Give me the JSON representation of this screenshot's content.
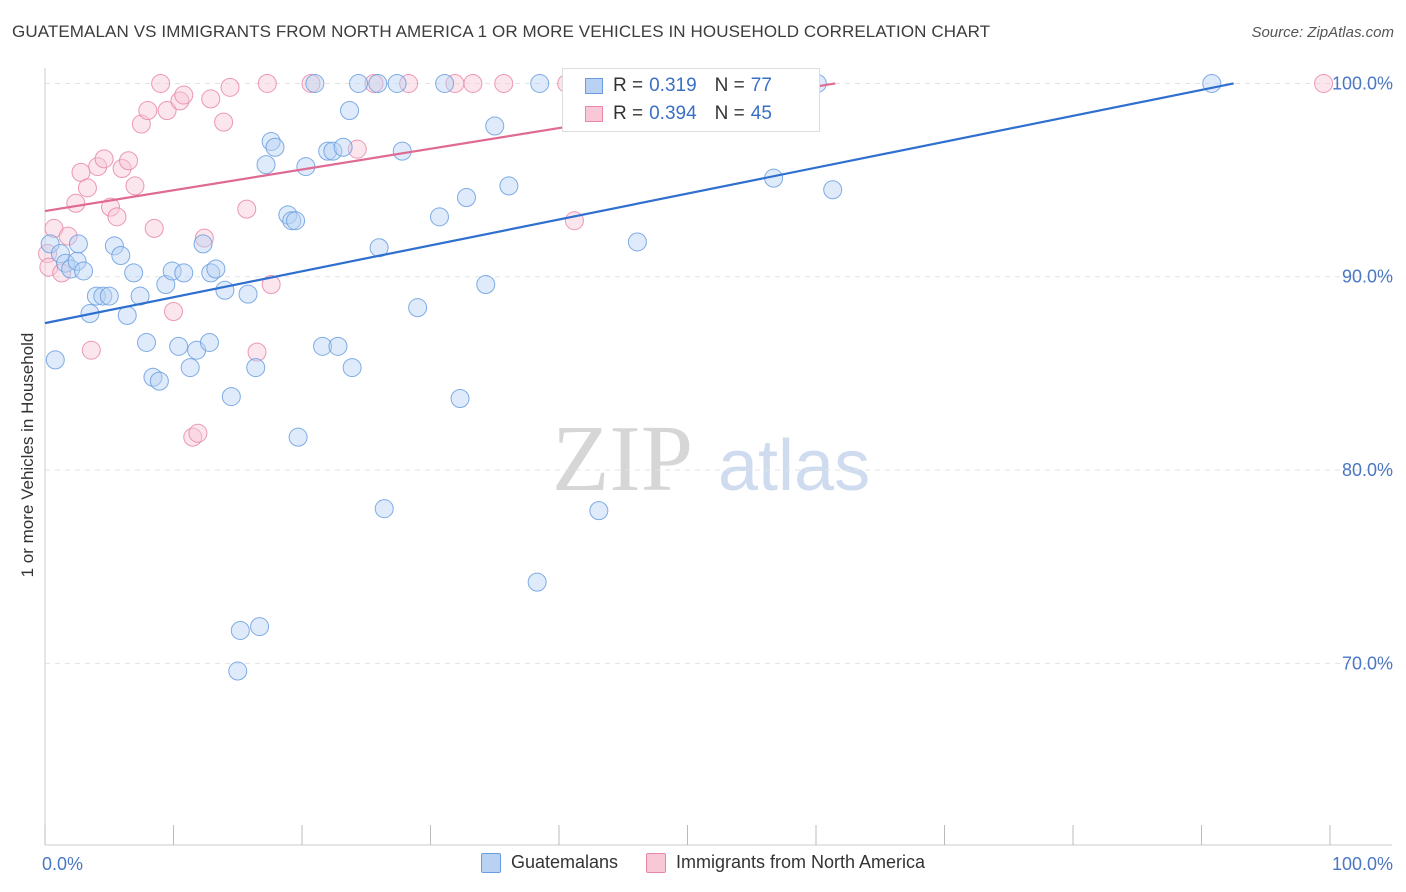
{
  "header": {
    "title": "GUATEMALAN VS IMMIGRANTS FROM NORTH AMERICA 1 OR MORE VEHICLES IN HOUSEHOLD CORRELATION CHART",
    "source": "Source: ZipAtlas.com"
  },
  "watermark": {
    "zip": "ZIP",
    "atlas": "atlas"
  },
  "legend": {
    "r_label": "R =",
    "n_label": "N =",
    "rows": [
      {
        "r": "0.319",
        "n": "77"
      },
      {
        "r": "0.394",
        "n": "45"
      }
    ]
  },
  "chart_data": {
    "type": "scatter",
    "title": "GUATEMALAN VS IMMIGRANTS FROM NORTH AMERICA 1 OR MORE VEHICLES IN HOUSEHOLD CORRELATION CHART",
    "xlabel": "",
    "ylabel": "1 or more Vehicles in Household",
    "xlim": [
      0,
      100
    ],
    "ylim": [
      60.6,
      100.8
    ],
    "x_tick_labels": [
      {
        "value": 0,
        "label": "0.0%"
      },
      {
        "value": 100,
        "label": "100.0%"
      }
    ],
    "y_tick_labels": [
      {
        "value": 100,
        "label": "100.0%"
      },
      {
        "value": 90,
        "label": "90.0%"
      },
      {
        "value": 80,
        "label": "80.0%"
      },
      {
        "value": 70,
        "label": "70.0%"
      }
    ],
    "x_minor_ticks": [
      0,
      10,
      20,
      30,
      40,
      50,
      60,
      70,
      80,
      90,
      100
    ],
    "grid": true,
    "legend_position": "bottom",
    "series": [
      {
        "name": "Guatemalans",
        "color": "#6a9de0",
        "fill": "#b9d2f3",
        "r": 0.319,
        "n": 77,
        "trend": [
          [
            0,
            87.6
          ],
          [
            92.5,
            100.0
          ]
        ],
        "points": [
          [
            0.4,
            91.7
          ],
          [
            0.8,
            85.7
          ],
          [
            1.2,
            91.2
          ],
          [
            1.6,
            90.7
          ],
          [
            2.0,
            90.4
          ],
          [
            2.5,
            90.8
          ],
          [
            2.6,
            91.7
          ],
          [
            3.0,
            90.3
          ],
          [
            3.5,
            88.1
          ],
          [
            4.0,
            89.0
          ],
          [
            4.5,
            89.0
          ],
          [
            5.0,
            89.0
          ],
          [
            5.4,
            91.6
          ],
          [
            5.9,
            91.1
          ],
          [
            6.4,
            88.0
          ],
          [
            6.9,
            90.2
          ],
          [
            7.4,
            89.0
          ],
          [
            7.9,
            86.6
          ],
          [
            8.4,
            84.8
          ],
          [
            8.9,
            84.6
          ],
          [
            9.4,
            89.6
          ],
          [
            9.9,
            90.3
          ],
          [
            10.4,
            86.4
          ],
          [
            10.8,
            90.2
          ],
          [
            11.3,
            85.3
          ],
          [
            11.8,
            86.2
          ],
          [
            12.3,
            91.7
          ],
          [
            12.8,
            86.6
          ],
          [
            12.9,
            90.2
          ],
          [
            13.3,
            90.4
          ],
          [
            14.0,
            89.3
          ],
          [
            14.5,
            83.8
          ],
          [
            15.0,
            69.6
          ],
          [
            15.2,
            71.7
          ],
          [
            15.8,
            89.1
          ],
          [
            16.4,
            85.3
          ],
          [
            16.7,
            71.9
          ],
          [
            17.2,
            95.8
          ],
          [
            17.6,
            97.0
          ],
          [
            17.9,
            96.7
          ],
          [
            18.9,
            93.2
          ],
          [
            19.2,
            92.9
          ],
          [
            19.5,
            92.9
          ],
          [
            19.7,
            81.7
          ],
          [
            20.3,
            95.7
          ],
          [
            21.0,
            100.0
          ],
          [
            21.6,
            86.4
          ],
          [
            22.0,
            96.5
          ],
          [
            22.4,
            96.5
          ],
          [
            22.8,
            86.4
          ],
          [
            23.2,
            96.7
          ],
          [
            23.7,
            98.6
          ],
          [
            23.9,
            85.3
          ],
          [
            24.4,
            100.0
          ],
          [
            25.9,
            100.0
          ],
          [
            26.0,
            91.5
          ],
          [
            26.4,
            78.0
          ],
          [
            27.4,
            100.0
          ],
          [
            27.8,
            96.5
          ],
          [
            29.0,
            88.4
          ],
          [
            30.7,
            93.1
          ],
          [
            31.1,
            100.0
          ],
          [
            32.3,
            83.7
          ],
          [
            32.8,
            94.1
          ],
          [
            34.3,
            89.6
          ],
          [
            35.0,
            97.8
          ],
          [
            36.1,
            94.7
          ],
          [
            38.3,
            74.2
          ],
          [
            38.5,
            100.0
          ],
          [
            43.1,
            77.9
          ],
          [
            46.1,
            91.8
          ],
          [
            50.3,
            100.0
          ],
          [
            52.2,
            100.0
          ],
          [
            56.7,
            95.1
          ],
          [
            60.1,
            100.0
          ],
          [
            61.3,
            94.5
          ],
          [
            90.8,
            100.0
          ]
        ]
      },
      {
        "name": "Immigrants from North America",
        "color": "#e887a8",
        "fill": "#f8c8d7",
        "r": 0.394,
        "n": 45,
        "trend": [
          [
            0,
            93.4
          ],
          [
            61.5,
            100.0
          ]
        ],
        "points": [
          [
            0.2,
            91.2
          ],
          [
            0.3,
            90.5
          ],
          [
            0.7,
            92.5
          ],
          [
            1.3,
            90.2
          ],
          [
            1.8,
            92.1
          ],
          [
            2.4,
            93.8
          ],
          [
            2.8,
            95.4
          ],
          [
            3.3,
            94.6
          ],
          [
            3.6,
            86.2
          ],
          [
            4.1,
            95.7
          ],
          [
            4.6,
            96.1
          ],
          [
            5.1,
            93.6
          ],
          [
            5.6,
            93.1
          ],
          [
            6.0,
            95.6
          ],
          [
            6.5,
            96.0
          ],
          [
            7.0,
            94.7
          ],
          [
            7.5,
            97.9
          ],
          [
            8.0,
            98.6
          ],
          [
            8.5,
            92.5
          ],
          [
            9.0,
            100.0
          ],
          [
            9.5,
            98.6
          ],
          [
            10.0,
            88.2
          ],
          [
            10.5,
            99.1
          ],
          [
            10.8,
            99.4
          ],
          [
            11.5,
            81.7
          ],
          [
            11.9,
            81.9
          ],
          [
            12.4,
            92.0
          ],
          [
            12.9,
            99.2
          ],
          [
            13.9,
            98.0
          ],
          [
            14.4,
            99.8
          ],
          [
            15.7,
            93.5
          ],
          [
            16.5,
            86.1
          ],
          [
            17.3,
            100.0
          ],
          [
            17.6,
            89.6
          ],
          [
            20.7,
            100.0
          ],
          [
            24.3,
            96.6
          ],
          [
            25.6,
            100.0
          ],
          [
            28.3,
            100.0
          ],
          [
            31.9,
            100.0
          ],
          [
            33.3,
            100.0
          ],
          [
            35.7,
            100.0
          ],
          [
            40.6,
            100.0
          ],
          [
            41.2,
            92.9
          ],
          [
            47.5,
            100.0
          ],
          [
            99.5,
            100.0
          ]
        ]
      }
    ]
  }
}
